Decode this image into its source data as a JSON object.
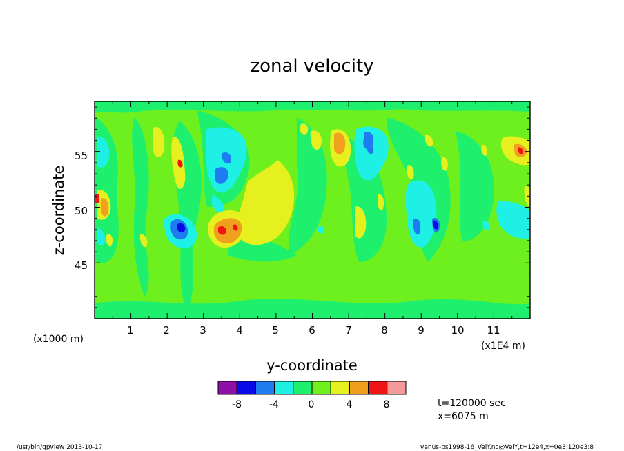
{
  "chart_data": {
    "type": "heatmap",
    "title": "zonal velocity",
    "xlabel": "y-coordinate",
    "ylabel": "z-coordinate",
    "x_unit_label": "(x1E4 m)",
    "y_unit_label": "(x1000 m)",
    "xlim": [
      0,
      12
    ],
    "ylim": [
      40,
      59.5
    ],
    "x_ticks": [
      "1",
      "2",
      "3",
      "4",
      "5",
      "6",
      "7",
      "8",
      "9",
      "10",
      "11"
    ],
    "y_ticks": [
      "45",
      "50",
      "55"
    ],
    "colorbar": {
      "colors": [
        "#8e10a8",
        "#0a0ae6",
        "#1e7cf0",
        "#1ef0e6",
        "#1ef06e",
        "#6ef01e",
        "#e6f01e",
        "#f0a01e",
        "#f01414",
        "#f59a9a"
      ],
      "tick_labels": [
        "-8",
        "-4",
        "0",
        "4",
        "8"
      ]
    },
    "features": [
      {
        "level": "neg4",
        "x": 0.2,
        "z": 55.5
      },
      {
        "level": "pos4",
        "x": 0.25,
        "z": 50.5
      },
      {
        "level": "pos8",
        "x": 0.25,
        "z": 50.5
      },
      {
        "level": "neg4",
        "x": 2.2,
        "z": 48.5
      },
      {
        "level": "neg6",
        "x": 2.3,
        "z": 48.5
      },
      {
        "level": "neg8",
        "x": 2.35,
        "z": 48.3
      },
      {
        "level": "pos4",
        "x": 3.7,
        "z": 48.2
      },
      {
        "level": "pos6",
        "x": 3.6,
        "z": 48.2
      },
      {
        "level": "pos8",
        "x": 3.4,
        "z": 48.0
      },
      {
        "level": "pos2",
        "x": 4.7,
        "z": 51.5
      },
      {
        "level": "neg2",
        "x": 3.8,
        "z": 55.0
      },
      {
        "level": "neg4",
        "x": 3.4,
        "z": 53.5
      },
      {
        "level": "pos4",
        "x": 6.7,
        "z": 55.5
      },
      {
        "level": "pos6",
        "x": 6.7,
        "z": 56.0
      },
      {
        "level": "neg4",
        "x": 7.5,
        "z": 56.5
      },
      {
        "level": "neg2",
        "x": 7.6,
        "z": 53.0
      },
      {
        "level": "neg4",
        "x": 9.1,
        "z": 48.5
      },
      {
        "level": "neg6",
        "x": 9.1,
        "z": 48.5
      },
      {
        "level": "neg2",
        "x": 11.2,
        "z": 49.5
      },
      {
        "level": "pos4",
        "x": 11.8,
        "z": 55.0
      },
      {
        "level": "pos6",
        "x": 11.85,
        "z": 55.0
      }
    ]
  },
  "annotations": {
    "time": "t=120000 sec",
    "position": "x=6075 m"
  },
  "footer": {
    "left": "/usr/bin/gpview   2013-10-17",
    "right": "venus-bs1998-16_VelY.nc@VelY,t=12e4,x=0e3:120e3:8"
  }
}
